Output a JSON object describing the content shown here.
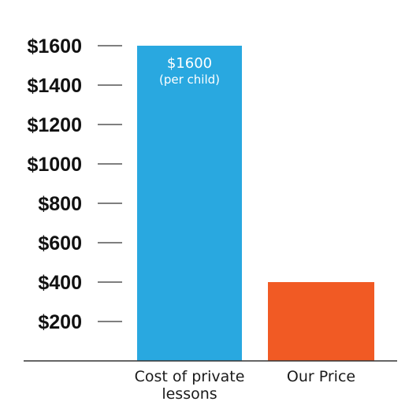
{
  "chart_data": {
    "type": "bar",
    "categories": [
      "Cost of private lessons",
      "Our Price"
    ],
    "category_label_lines": [
      [
        "Cost of private",
        "lessons"
      ],
      [
        "Our Price"
      ]
    ],
    "values": [
      1600,
      400
    ],
    "bar_colors": [
      "#29a8e0",
      "#f15a24"
    ],
    "yticks": [
      200,
      400,
      600,
      800,
      1000,
      1200,
      1400,
      1600
    ],
    "ytick_labels": [
      "$200",
      "$400",
      "$600",
      "$800",
      "$1000",
      "$1200",
      "$1400",
      "$1600"
    ],
    "ylim": [
      0,
      1600
    ],
    "data_labels": [
      {
        "bar_index": 0,
        "lines": [
          "$1600",
          "(per child)"
        ]
      }
    ],
    "title": "",
    "xlabel": "",
    "ylabel": "",
    "grid": false,
    "axis_color": "#333333",
    "text_color": "#111111"
  }
}
